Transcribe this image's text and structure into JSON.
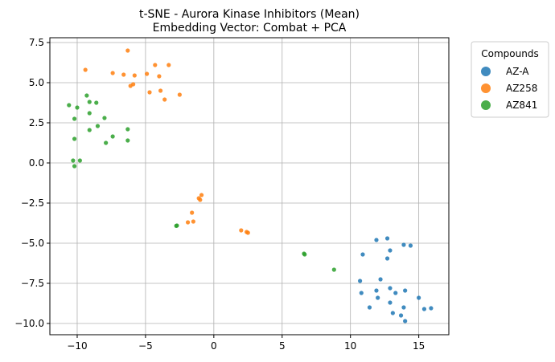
{
  "chart_data": {
    "type": "scatter",
    "title": "t-SNE - Aurora Kinase Inhibitors (Mean)",
    "subtitle": "Embedding Vector: Combat + PCA",
    "xlabel": "",
    "ylabel": "",
    "xlim": [
      -12,
      17.2
    ],
    "ylim": [
      -10.7,
      7.8
    ],
    "xticks": [
      -10,
      -5,
      0,
      5,
      10,
      15
    ],
    "yticks": [
      -10.0,
      -7.5,
      -5.0,
      -2.5,
      0.0,
      2.5,
      5.0,
      7.5
    ],
    "xtick_labels": [
      "−10",
      "−5",
      "0",
      "5",
      "10",
      "15"
    ],
    "ytick_labels": [
      "−10.0",
      "−7.5",
      "−5.0",
      "−2.5",
      "0.0",
      "2.5",
      "5.0",
      "7.5"
    ],
    "grid": true,
    "legend": {
      "title": "Compounds",
      "placement": "outside-top-right"
    },
    "series": [
      {
        "name": "AZ-A",
        "color": "#1f77b4",
        "points": [
          [
            11.9,
            -4.8
          ],
          [
            12.7,
            -4.7
          ],
          [
            13.9,
            -5.1
          ],
          [
            14.4,
            -5.15
          ],
          [
            10.9,
            -5.7
          ],
          [
            12.9,
            -5.45
          ],
          [
            12.7,
            -5.95
          ],
          [
            12.2,
            -7.25
          ],
          [
            10.7,
            -7.35
          ],
          [
            10.8,
            -8.1
          ],
          [
            11.9,
            -7.95
          ],
          [
            12.9,
            -7.8
          ],
          [
            13.3,
            -8.1
          ],
          [
            14.0,
            -7.95
          ],
          [
            12.0,
            -8.4
          ],
          [
            12.9,
            -8.7
          ],
          [
            15.0,
            -8.4
          ],
          [
            11.4,
            -9.0
          ],
          [
            13.9,
            -9.0
          ],
          [
            15.9,
            -9.05
          ],
          [
            15.4,
            -9.1
          ],
          [
            13.1,
            -9.35
          ],
          [
            13.7,
            -9.5
          ],
          [
            14.0,
            -9.85
          ]
        ]
      },
      {
        "name": "AZ258",
        "color": "#ff7f0e",
        "points": [
          [
            -6.3,
            7.0
          ],
          [
            -9.4,
            5.8
          ],
          [
            -4.3,
            6.1
          ],
          [
            -3.3,
            6.1
          ],
          [
            -7.4,
            5.6
          ],
          [
            -6.6,
            5.5
          ],
          [
            -4.9,
            5.55
          ],
          [
            -5.8,
            5.45
          ],
          [
            -4.0,
            5.4
          ],
          [
            -5.9,
            4.9
          ],
          [
            -6.1,
            4.8
          ],
          [
            -4.7,
            4.4
          ],
          [
            -3.9,
            4.5
          ],
          [
            -2.5,
            4.25
          ],
          [
            -3.6,
            3.95
          ],
          [
            -0.9,
            -2.0
          ],
          [
            -1.1,
            -2.2
          ],
          [
            -1.0,
            -2.3
          ],
          [
            -1.6,
            -3.1
          ],
          [
            -1.9,
            -3.7
          ],
          [
            -1.5,
            -3.65
          ],
          [
            2.0,
            -4.2
          ],
          [
            2.4,
            -4.3
          ],
          [
            2.5,
            -4.35
          ]
        ]
      },
      {
        "name": "AZ841",
        "color": "#2ca02c",
        "points": [
          [
            -9.3,
            4.2
          ],
          [
            -10.6,
            3.6
          ],
          [
            -9.1,
            3.8
          ],
          [
            -8.6,
            3.75
          ],
          [
            -10.0,
            3.45
          ],
          [
            -9.1,
            3.1
          ],
          [
            -10.2,
            2.75
          ],
          [
            -8.0,
            2.8
          ],
          [
            -8.5,
            2.3
          ],
          [
            -6.3,
            2.1
          ],
          [
            -9.1,
            2.05
          ],
          [
            -7.4,
            1.65
          ],
          [
            -10.2,
            1.5
          ],
          [
            -6.3,
            1.4
          ],
          [
            -7.9,
            1.25
          ],
          [
            -10.3,
            0.15
          ],
          [
            -9.8,
            0.15
          ],
          [
            -10.2,
            -0.2
          ],
          [
            -2.7,
            -3.9
          ],
          [
            -2.75,
            -3.92
          ],
          [
            6.6,
            -5.65
          ],
          [
            6.65,
            -5.7
          ],
          [
            8.8,
            -6.65
          ]
        ]
      }
    ]
  }
}
